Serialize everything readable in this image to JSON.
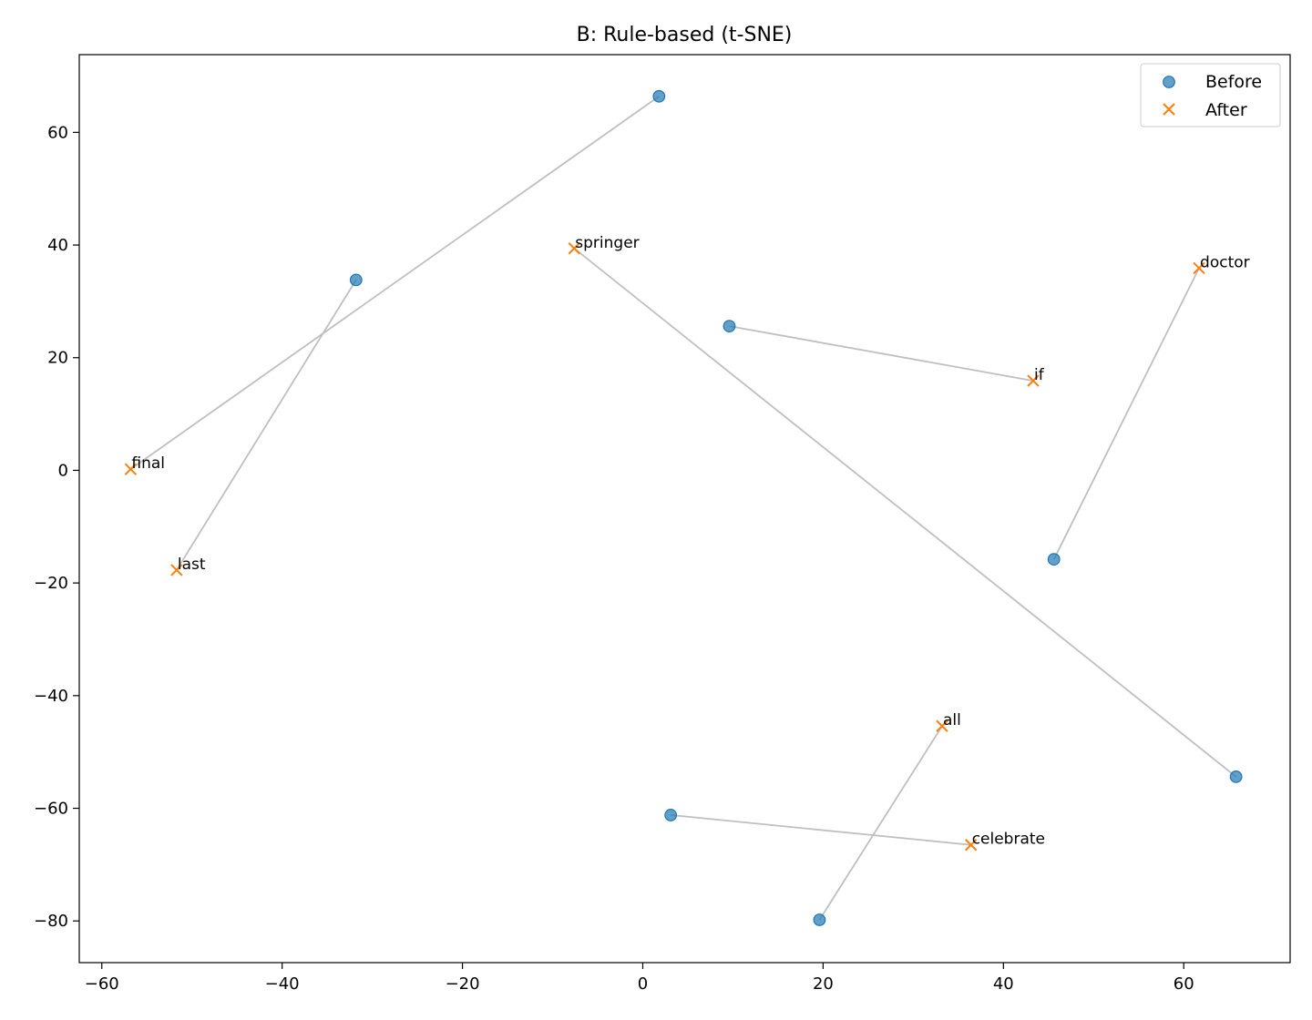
{
  "chart_data": {
    "type": "scatter",
    "title": "B: Rule-based (t-SNE)",
    "xlabel": "",
    "ylabel": "",
    "xlim": [
      -62.5,
      71.8
    ],
    "ylim": [
      -87.4,
      73.8
    ],
    "xticks": [
      -60,
      -40,
      -20,
      0,
      20,
      40,
      60
    ],
    "yticks": [
      -80,
      -60,
      -40,
      -20,
      0,
      20,
      40,
      60
    ],
    "xtick_labels": [
      "−60",
      "−40",
      "−20",
      "0",
      "20",
      "40",
      "60"
    ],
    "ytick_labels": [
      "−80",
      "−60",
      "−40",
      "−20",
      "0",
      "20",
      "40",
      "60"
    ],
    "grid": false,
    "legend": {
      "position": "top-right",
      "entries": [
        "Before",
        "After"
      ]
    },
    "colors": {
      "before": "#1f77b4",
      "after": "#ff7f0e",
      "connector": "#bfbfbf"
    },
    "series": [
      {
        "name": "Before",
        "marker": "circle",
        "points": [
          {
            "x": 1.8,
            "y": 66.4
          },
          {
            "x": -31.8,
            "y": 33.8
          },
          {
            "x": 9.6,
            "y": 25.6
          },
          {
            "x": 45.6,
            "y": -15.8
          },
          {
            "x": 65.8,
            "y": -54.4
          },
          {
            "x": 3.1,
            "y": -61.2
          },
          {
            "x": 19.6,
            "y": -79.8
          }
        ]
      },
      {
        "name": "After",
        "marker": "x",
        "points": [
          {
            "x": -56.8,
            "y": 0.2,
            "label": "final"
          },
          {
            "x": -51.7,
            "y": -17.7,
            "label": "last"
          },
          {
            "x": -7.6,
            "y": 39.4,
            "label": "springer"
          },
          {
            "x": 43.3,
            "y": 15.9,
            "label": "if"
          },
          {
            "x": 61.7,
            "y": 35.9,
            "label": "doctor"
          },
          {
            "x": 33.2,
            "y": -45.4,
            "label": "all"
          },
          {
            "x": 36.4,
            "y": -66.5,
            "label": "celebrate"
          }
        ]
      }
    ],
    "connections": [
      {
        "from": [
          1.8,
          66.4
        ],
        "to": [
          -56.8,
          0.2
        ]
      },
      {
        "from": [
          -31.8,
          33.8
        ],
        "to": [
          -51.7,
          -17.7
        ]
      },
      {
        "from": [
          65.8,
          -54.4
        ],
        "to": [
          -7.6,
          39.4
        ]
      },
      {
        "from": [
          9.6,
          25.6
        ],
        "to": [
          43.3,
          15.9
        ]
      },
      {
        "from": [
          45.6,
          -15.8
        ],
        "to": [
          61.7,
          35.9
        ]
      },
      {
        "from": [
          19.6,
          -79.8
        ],
        "to": [
          33.2,
          -45.4
        ]
      },
      {
        "from": [
          3.1,
          -61.2
        ],
        "to": [
          36.4,
          -66.5
        ]
      }
    ]
  }
}
